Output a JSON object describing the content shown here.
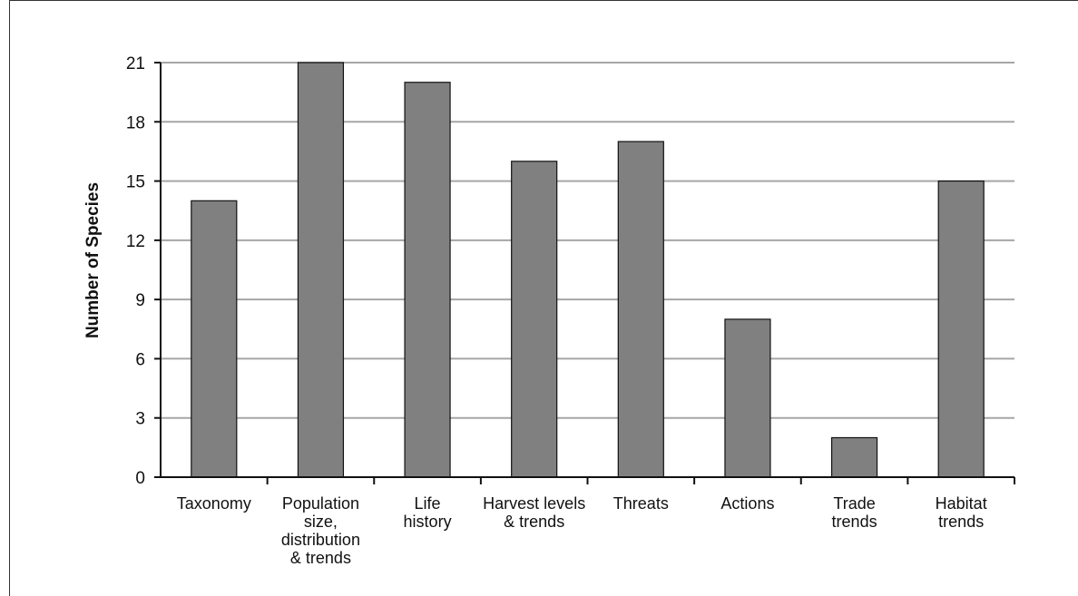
{
  "chart_data": {
    "type": "bar",
    "categories": [
      "Taxonomy",
      "Population size, distribution & trends",
      "Life history",
      "Harvest levels & trends",
      "Threats",
      "Actions",
      "Trade trends",
      "Habitat trends"
    ],
    "category_label_lines": [
      [
        "Taxonomy"
      ],
      [
        "Population",
        "size,",
        "distribution",
        "& trends"
      ],
      [
        "Life",
        "history"
      ],
      [
        "Harvest levels",
        "& trends"
      ],
      [
        "Threats"
      ],
      [
        "Actions"
      ],
      [
        "Trade",
        "trends"
      ],
      [
        "Habitat",
        "trends"
      ]
    ],
    "values": [
      14,
      21,
      20,
      16,
      17,
      8,
      2,
      15
    ],
    "ylabel": "Number of Species",
    "xlabel": "",
    "title": "",
    "ylim": [
      0,
      21
    ],
    "yticks": [
      0,
      3,
      6,
      9,
      12,
      15,
      18,
      21
    ],
    "grid": true,
    "bar_color": "#808080",
    "grid_color": "#a6a6a6"
  }
}
